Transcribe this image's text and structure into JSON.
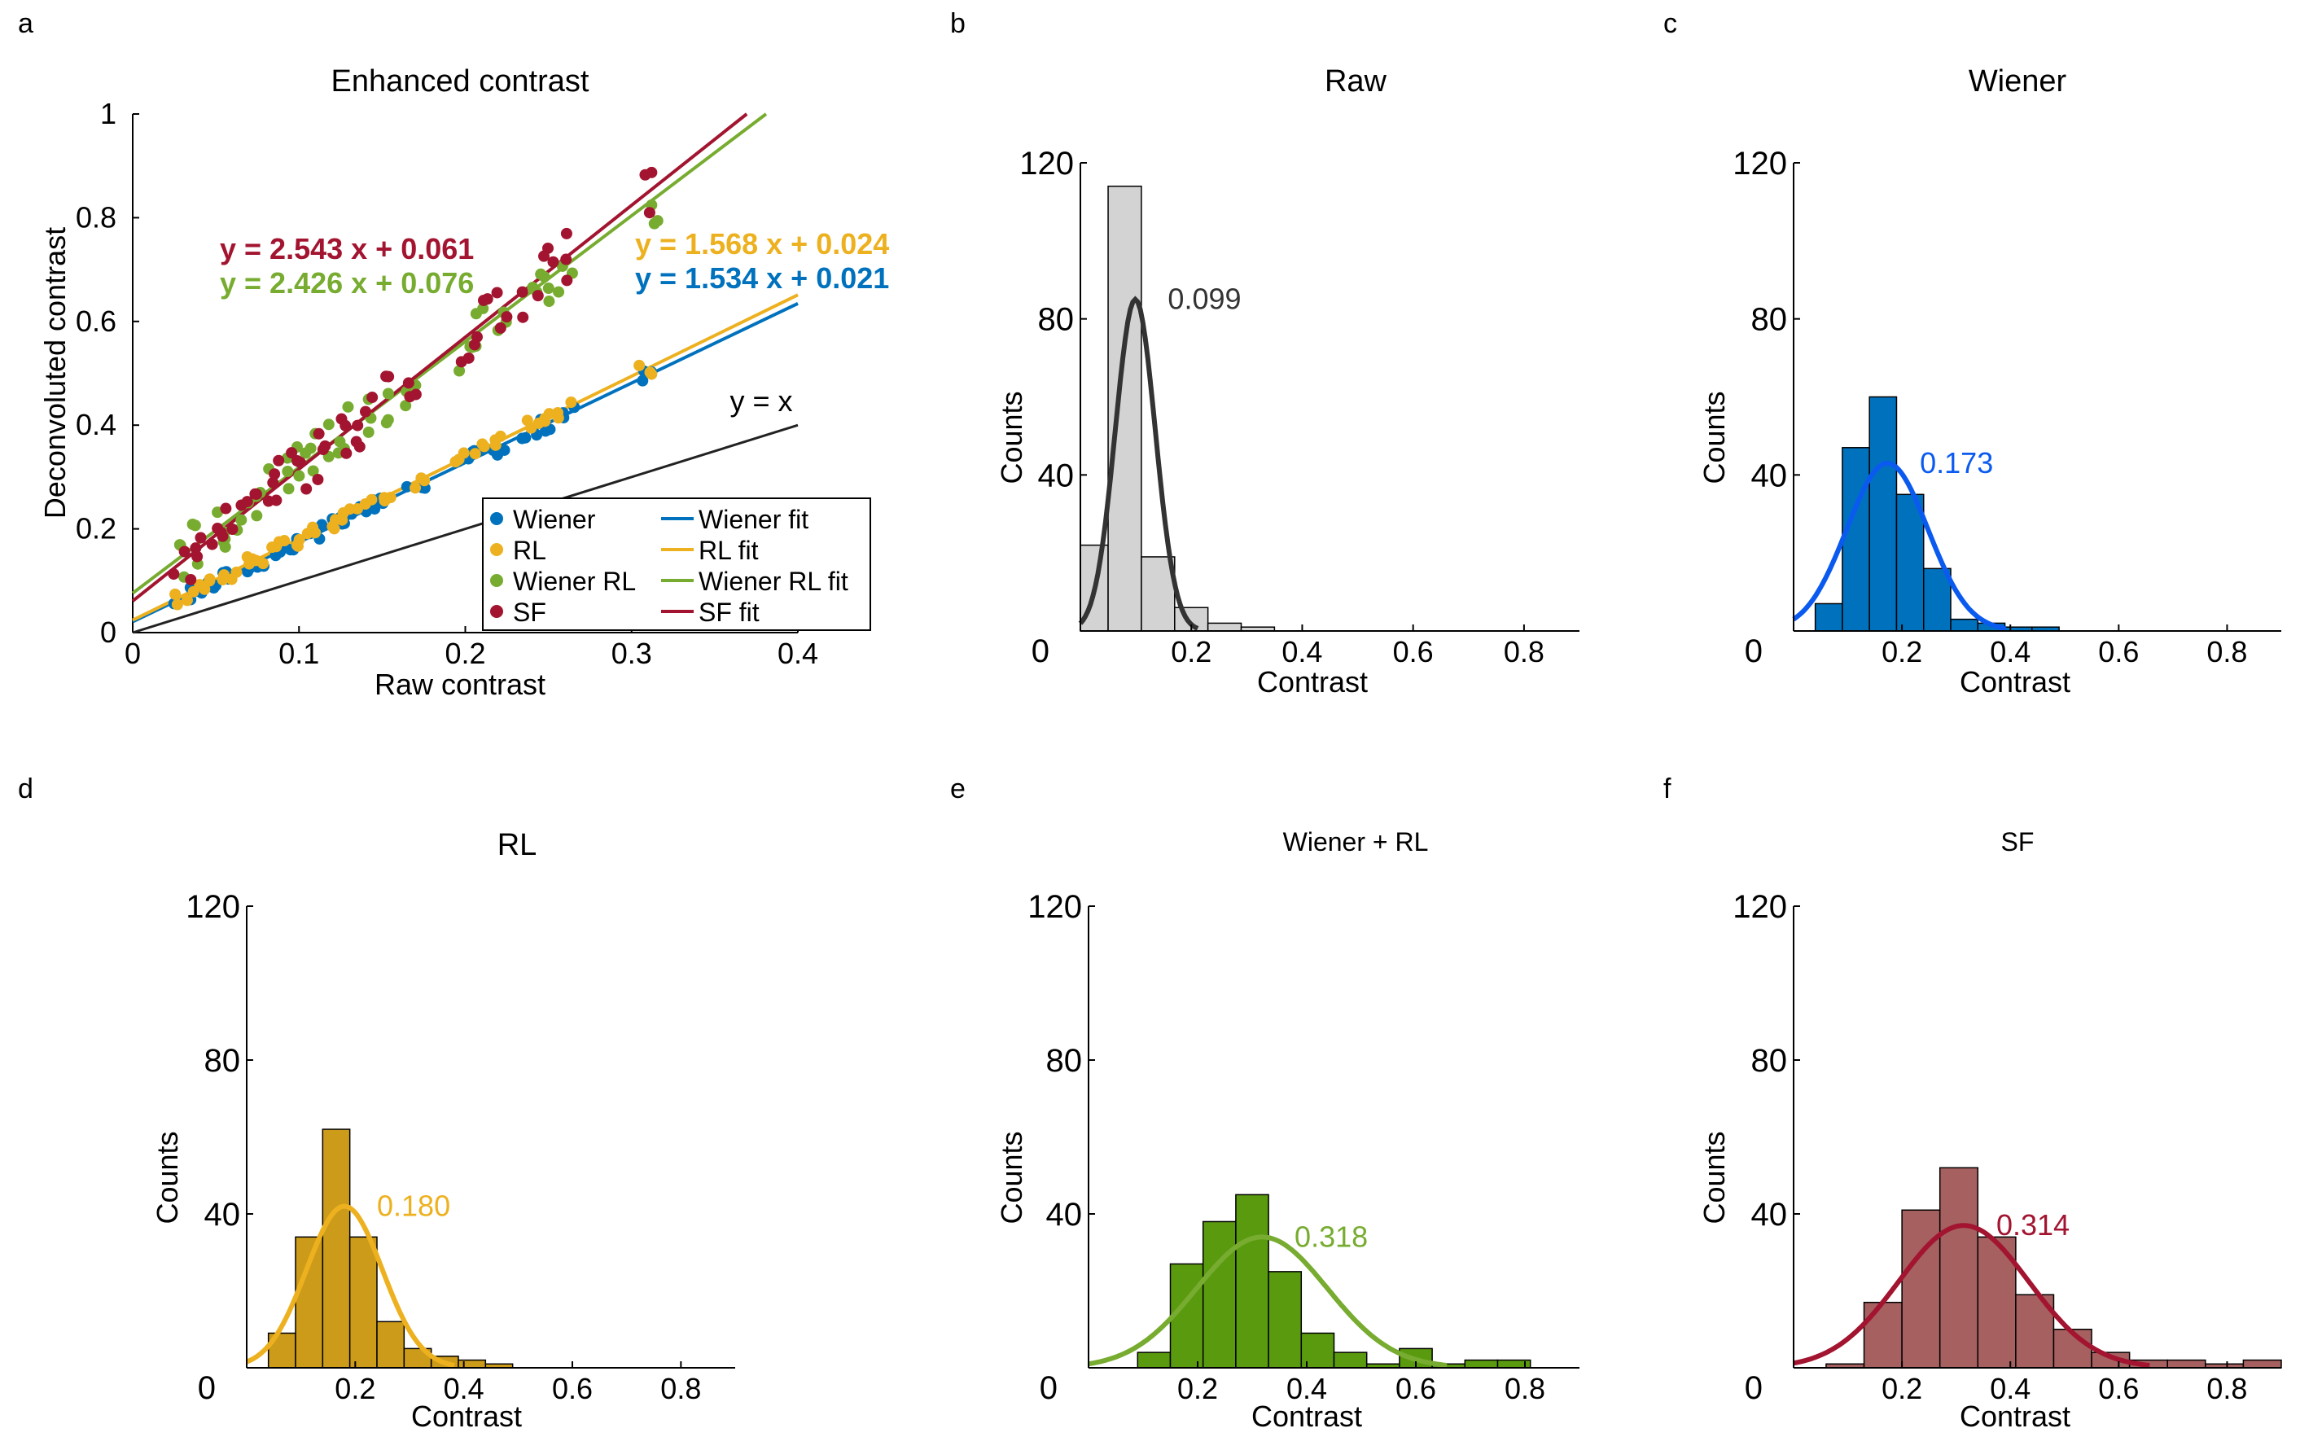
{
  "chart_data": [
    {
      "panel": "a",
      "type": "scatter",
      "title": "Enhanced contrast",
      "xlabel": "Raw contrast",
      "ylabel": "Deconvoluted contrast",
      "xlim": [
        0,
        0.4
      ],
      "ylim": [
        0,
        1
      ],
      "xticks": [
        "0",
        "0.1",
        "0.2",
        "0.3",
        "0.4"
      ],
      "yticks": [
        "0",
        "0.2",
        "0.4",
        "0.6",
        "0.8",
        "1"
      ],
      "reference_line_label": "y = x",
      "series": [
        {
          "name": "Wiener",
          "fit_name": "Wiener fit",
          "color": "#0072BD",
          "slope": 1.534,
          "intercept": 0.021,
          "equation": "y = 1.534 x + 0.021",
          "x": [
            0.03,
            0.04,
            0.05,
            0.06,
            0.07,
            0.08,
            0.09,
            0.1,
            0.11,
            0.12,
            0.13,
            0.14,
            0.15,
            0.17,
            0.2,
            0.21,
            0.22,
            0.24,
            0.25,
            0.26,
            0.31
          ]
        },
        {
          "name": "RL",
          "fit_name": "RL fit",
          "color": "#EDB120",
          "slope": 1.568,
          "intercept": 0.024,
          "equation": "y = 1.568 x + 0.024",
          "x": [
            0.03,
            0.04,
            0.05,
            0.06,
            0.07,
            0.08,
            0.09,
            0.1,
            0.11,
            0.12,
            0.13,
            0.14,
            0.15,
            0.17,
            0.2,
            0.21,
            0.22,
            0.24,
            0.25,
            0.26,
            0.31
          ]
        },
        {
          "name": "Wiener RL",
          "fit_name": "Wiener RL fit",
          "color": "#77AC30",
          "slope": 2.426,
          "intercept": 0.076,
          "equation": "y = 2.426 x + 0.076",
          "x": [
            0.03,
            0.04,
            0.05,
            0.06,
            0.07,
            0.08,
            0.09,
            0.1,
            0.11,
            0.12,
            0.13,
            0.14,
            0.15,
            0.17,
            0.2,
            0.21,
            0.22,
            0.24,
            0.25,
            0.26,
            0.31
          ]
        },
        {
          "name": "SF",
          "fit_name": "SF fit",
          "color": "#A2142F",
          "slope": 2.543,
          "intercept": 0.061,
          "equation": "y = 2.543 x + 0.061",
          "x": [
            0.03,
            0.04,
            0.05,
            0.06,
            0.07,
            0.08,
            0.09,
            0.1,
            0.11,
            0.12,
            0.13,
            0.14,
            0.15,
            0.17,
            0.2,
            0.21,
            0.22,
            0.24,
            0.25,
            0.26,
            0.31
          ]
        }
      ]
    },
    {
      "panel": "b",
      "type": "histogram",
      "title": "Raw",
      "xlabel": "Contrast",
      "ylabel": "Counts",
      "xlim": [
        0,
        0.9
      ],
      "ylim": [
        0,
        120
      ],
      "xticks": [
        "0",
        "0.2",
        "0.4",
        "0.6",
        "0.8"
      ],
      "yticks": [
        "0",
        "40",
        "80",
        "120"
      ],
      "bin_edges": [
        0.0,
        0.05,
        0.11,
        0.17,
        0.23,
        0.29,
        0.35
      ],
      "counts": [
        22,
        114,
        19,
        6,
        2,
        1
      ],
      "face_color": "#D3D3D3",
      "curve_color": "#333333",
      "fit_mean": 0.099,
      "fit_sd": 0.036,
      "fit_scale": 85,
      "annotation": "0.099"
    },
    {
      "panel": "c",
      "type": "histogram",
      "title": "Wiener",
      "xlabel": "Contrast",
      "ylabel": "Counts",
      "xlim": [
        0,
        0.9
      ],
      "ylim": [
        0,
        120
      ],
      "xticks": [
        "0",
        "0.2",
        "0.4",
        "0.6",
        "0.8"
      ],
      "yticks": [
        "0",
        "40",
        "80",
        "120"
      ],
      "bin_edges": [
        0.04,
        0.09,
        0.14,
        0.19,
        0.24,
        0.29,
        0.34,
        0.39,
        0.44,
        0.49
      ],
      "counts": [
        7,
        47,
        60,
        35,
        16,
        3,
        2,
        1,
        1
      ],
      "face_color": "#0072BD",
      "curve_color": "#0A5AF0",
      "fit_mean": 0.173,
      "fit_sd": 0.075,
      "fit_scale": 43,
      "annotation": "0.173"
    },
    {
      "panel": "d",
      "type": "histogram",
      "title": "RL",
      "xlabel": "Contrast",
      "ylabel": "Counts",
      "xlim": [
        0,
        0.9
      ],
      "ylim": [
        0,
        120
      ],
      "xticks": [
        "0",
        "0.2",
        "0.4",
        "0.6",
        "0.8"
      ],
      "yticks": [
        "0",
        "40",
        "80",
        "120"
      ],
      "bin_edges": [
        0.04,
        0.09,
        0.14,
        0.19,
        0.24,
        0.29,
        0.34,
        0.39,
        0.44,
        0.49
      ],
      "counts": [
        9,
        34,
        62,
        34,
        12,
        5,
        3,
        2,
        1
      ],
      "face_color": "#CC9B1A",
      "curve_color": "#EDB120",
      "fit_mean": 0.18,
      "fit_sd": 0.07,
      "fit_scale": 42,
      "annotation": "0.180"
    },
    {
      "panel": "e",
      "type": "histogram",
      "title": "Wiener + RL",
      "xlabel": "Contrast",
      "ylabel": "Counts",
      "xlim": [
        0,
        0.9
      ],
      "ylim": [
        0,
        120
      ],
      "xticks": [
        "0.2",
        "0.4",
        "0.6",
        "0.8"
      ],
      "yticks": [
        "0",
        "40",
        "80",
        "120"
      ],
      "bin_edges": [
        0.09,
        0.15,
        0.21,
        0.27,
        0.33,
        0.39,
        0.45,
        0.51,
        0.57,
        0.63,
        0.69,
        0.75,
        0.81
      ],
      "counts": [
        4,
        27,
        38,
        45,
        25,
        9,
        4,
        1,
        5,
        1,
        2,
        2
      ],
      "face_color": "#5A9A0F",
      "curve_color": "#77AC30",
      "fit_mean": 0.318,
      "fit_sd": 0.12,
      "fit_scale": 34,
      "annotation": "0.318"
    },
    {
      "panel": "f",
      "type": "histogram",
      "title": "SF",
      "xlabel": "Contrast",
      "ylabel": "Counts",
      "xlim": [
        0,
        0.9
      ],
      "ylim": [
        0,
        120
      ],
      "xticks": [
        "0.2",
        "0.4",
        "0.6",
        "0.8"
      ],
      "yticks": [
        "0",
        "40",
        "80",
        "120"
      ],
      "bin_edges": [
        0.06,
        0.13,
        0.2,
        0.27,
        0.34,
        0.41,
        0.48,
        0.55,
        0.62,
        0.69,
        0.76,
        0.83,
        0.9
      ],
      "counts": [
        1,
        17,
        41,
        52,
        34,
        19,
        10,
        4,
        2,
        2,
        1,
        2
      ],
      "face_color": "#A66060",
      "curve_color": "#A2142F",
      "fit_mean": 0.314,
      "fit_sd": 0.12,
      "fit_scale": 37,
      "annotation": "0.314"
    }
  ]
}
